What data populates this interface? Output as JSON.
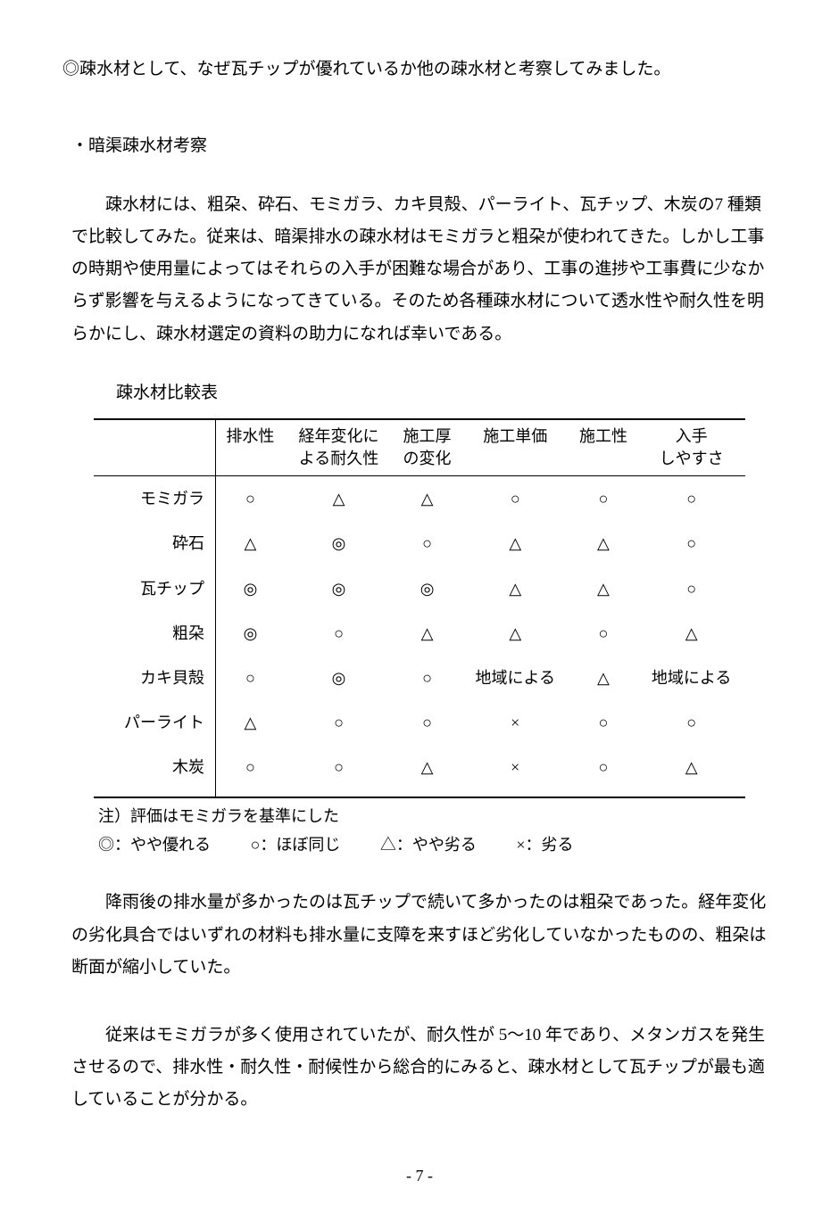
{
  "intro": "◎疎水材として、なぜ瓦チップが優れているか他の疎水材と考察してみました。",
  "section_head": "・暗渠疎水材考察",
  "para1": "疎水材には、粗朶、砕石、モミガラ、カキ貝殻、パーライト、瓦チップ、木炭の7 種類で比較してみた。従来は、暗渠排水の疎水材はモミガラと粗朶が使われてきた。しかし工事の時期や使用量によってはそれらの入手が困難な場合があり、工事の進捗や工事費に少なからず影響を与えるようになってきている。そのため各種疎水材について透水性や耐久性を明らかにし、疎水材選定の資料の助力になれば幸いである。",
  "table_title": "疎水材比較表",
  "columns": [
    "排水性",
    "経年変化に\nよる耐久性",
    "施工厚\nの変化",
    "施工単価",
    "施工性",
    "入手\nしやすさ"
  ],
  "rows": [
    {
      "name": "モミガラ",
      "cells": [
        "○",
        "△",
        "△",
        "○",
        "○",
        "○"
      ]
    },
    {
      "name": "砕石",
      "cells": [
        "△",
        "◎",
        "○",
        "△",
        "△",
        "○"
      ]
    },
    {
      "name": "瓦チップ",
      "cells": [
        "◎",
        "◎",
        "◎",
        "△",
        "△",
        "○"
      ]
    },
    {
      "name": "粗朶",
      "cells": [
        "◎",
        "○",
        "△",
        "△",
        "○",
        "△"
      ]
    },
    {
      "name": "カキ貝殻",
      "cells": [
        "○",
        "◎",
        "○",
        "地域による",
        "△",
        "地域による"
      ]
    },
    {
      "name": "パーライト",
      "cells": [
        "△",
        "○",
        "○",
        "×",
        "○",
        "○"
      ]
    },
    {
      "name": "木炭",
      "cells": [
        "○",
        "○",
        "△",
        "×",
        "○",
        "△"
      ]
    }
  ],
  "note": "注）評価はモミガラを基準にした",
  "legend": {
    "a": "◎：やや優れる",
    "b": "○：ほぼ同じ",
    "c": "△：やや劣る",
    "d": "×：劣る"
  },
  "para2": "降雨後の排水量が多かったのは瓦チップで続いて多かったのは粗朶であった。経年変化の劣化具合ではいずれの材料も排水量に支障を来すほど劣化していなかったものの、粗朶は断面が縮小していた。",
  "para3": "従来はモミガラが多く使用されていたが、耐久性が 5～10 年であり、メタンガスを発生させるので、排水性・耐久性・耐候性から総合的にみると、疎水材として瓦チップが最も適していることが分かる。",
  "page_number": "- 7 -",
  "style": {
    "text_fontsize": 19,
    "table_fontsize": 18,
    "border_color": "#000000",
    "background_color": "#ffffff",
    "text_color": "#000000"
  }
}
